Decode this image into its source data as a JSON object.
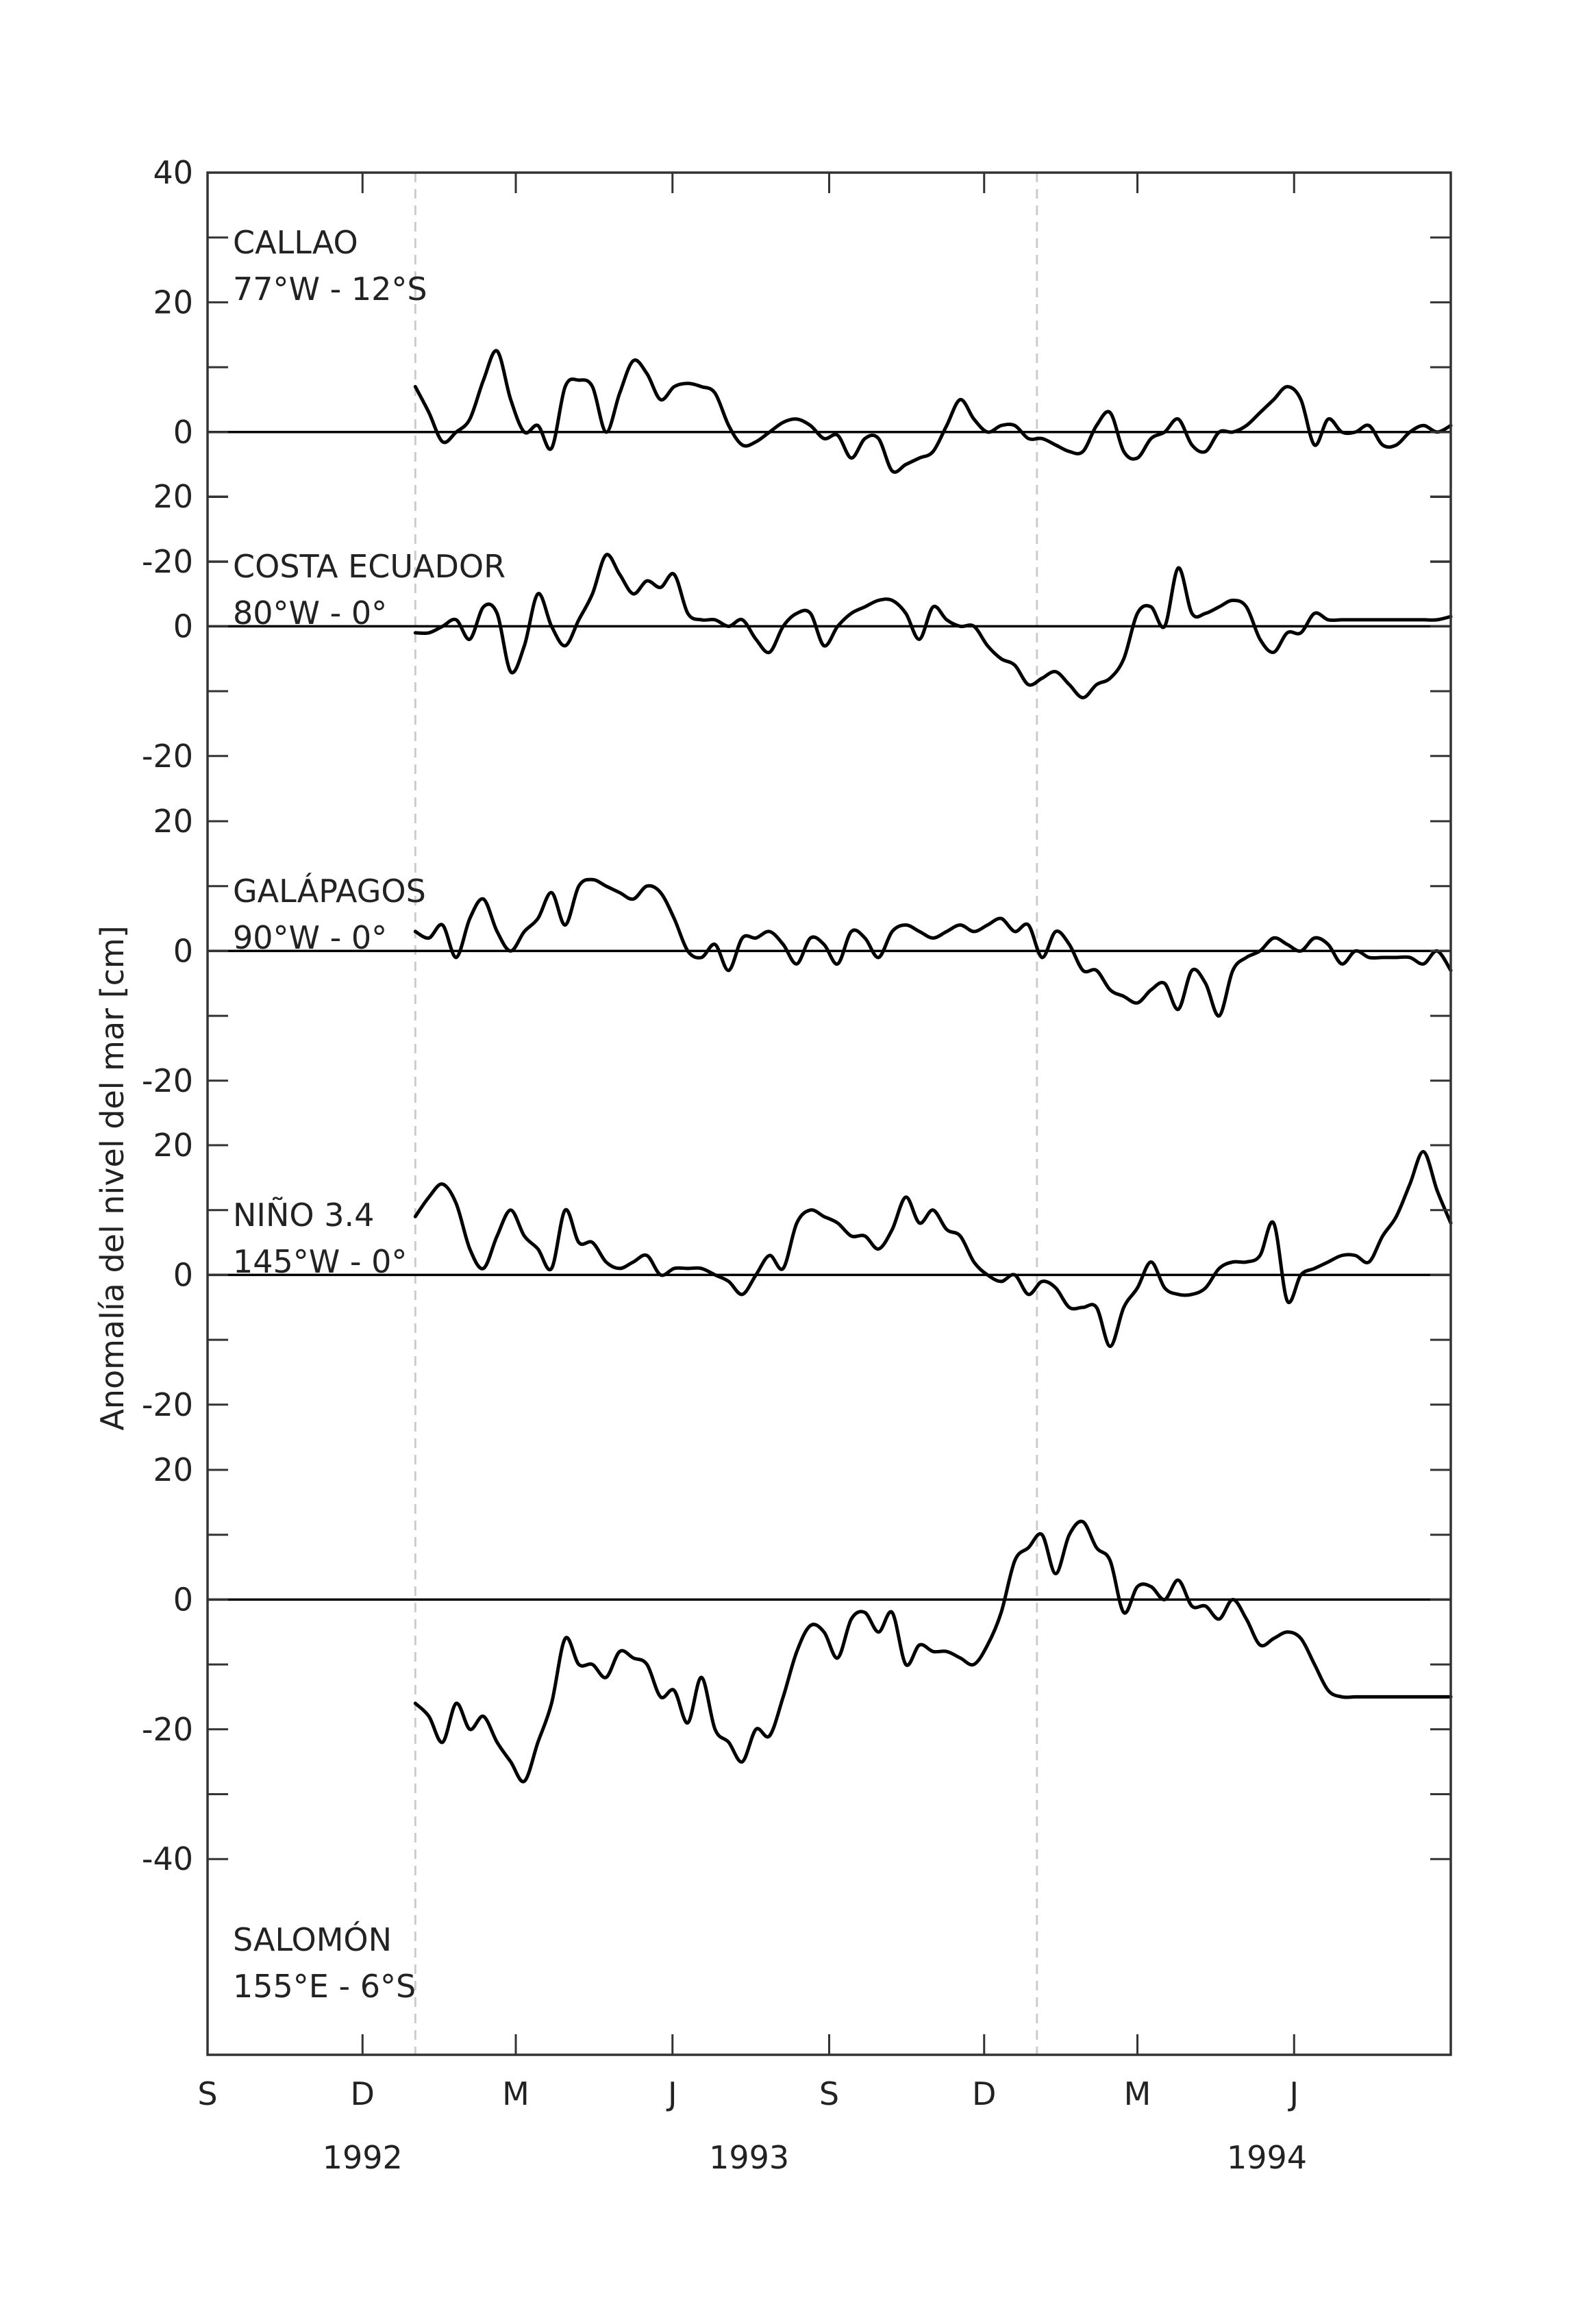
{
  "chart_data": {
    "type": "line",
    "ylabel": "Anomalía del nivel del mar [cm]",
    "x_start": "1992-09-01",
    "x_end": "1994-09-01",
    "x_ticks": [
      {
        "date": "1992-09-01",
        "label": "S"
      },
      {
        "date": "1992-12-01",
        "label": "D"
      },
      {
        "date": "1993-03-01",
        "label": "M"
      },
      {
        "date": "1993-06-01",
        "label": "J"
      },
      {
        "date": "1993-09-01",
        "label": "S"
      },
      {
        "date": "1993-12-01",
        "label": "D"
      },
      {
        "date": "1994-03-01",
        "label": "M"
      },
      {
        "date": "1994-06-01",
        "label": "J"
      }
    ],
    "year_labels": [
      {
        "label": "1992",
        "date": "1992-12-01"
      },
      {
        "label": "1993",
        "date": "1993-07-16"
      },
      {
        "label": "1994",
        "date": "1994-05-16"
      }
    ],
    "year_separators": [
      "1993-01-01",
      "1994-01-01"
    ],
    "line_color": "#000000",
    "panels": [
      {
        "station": "CALLAO",
        "coords": "77°W - 12°S",
        "ylim": [
          -20,
          40
        ],
        "yticks": [
          -20,
          0,
          20,
          40
        ],
        "x": [
          "1993-01-01",
          "1993-01-09",
          "1993-01-17",
          "1993-01-25",
          "1993-02-02",
          "1993-02-10",
          "1993-02-18",
          "1993-02-26",
          "1993-03-06",
          "1993-03-14",
          "1993-03-22",
          "1993-03-30",
          "1993-04-07",
          "1993-04-15",
          "1993-04-23",
          "1993-05-01",
          "1993-05-09",
          "1993-05-17",
          "1993-05-25",
          "1993-06-02",
          "1993-06-10",
          "1993-06-18",
          "1993-06-26",
          "1993-07-04",
          "1993-07-12",
          "1993-07-20",
          "1993-07-28",
          "1993-08-05",
          "1993-08-13",
          "1993-08-21",
          "1993-08-29",
          "1993-09-06",
          "1993-09-14",
          "1993-09-22",
          "1993-09-30",
          "1993-10-08",
          "1993-10-16",
          "1993-10-24",
          "1993-11-01",
          "1993-11-09",
          "1993-11-17",
          "1993-11-25",
          "1993-12-03",
          "1993-12-11",
          "1993-12-19",
          "1993-12-27",
          "1994-01-04",
          "1994-01-12",
          "1994-01-20",
          "1994-01-28",
          "1994-02-05",
          "1994-02-13",
          "1994-02-21",
          "1994-03-01",
          "1994-03-09",
          "1994-03-17",
          "1994-03-25",
          "1994-04-02",
          "1994-04-10",
          "1994-04-18",
          "1994-04-26",
          "1994-05-04",
          "1994-05-12",
          "1994-05-20",
          "1994-05-28",
          "1994-06-05",
          "1994-06-13",
          "1994-06-21",
          "1994-06-29",
          "1994-07-07",
          "1994-07-15",
          "1994-07-23",
          "1994-07-31",
          "1994-08-08",
          "1994-08-16",
          "1994-08-24",
          "1994-09-01"
        ],
        "values": [
          7,
          3,
          -1.5,
          0,
          2,
          8,
          12.5,
          5,
          0,
          1,
          -2.5,
          7,
          8,
          7,
          0,
          6,
          11,
          9,
          5,
          7,
          7.5,
          7,
          6,
          1,
          -2,
          -1.5,
          0,
          1.5,
          2,
          1,
          -1,
          -0.5,
          -4,
          -1,
          -1,
          -6,
          -5,
          -4,
          -3,
          1,
          5,
          2,
          0,
          1,
          1,
          -1,
          -1,
          -2,
          -3,
          -3,
          1,
          3,
          -3,
          -4,
          -1,
          0,
          2,
          -2,
          -3,
          0,
          0,
          1,
          3,
          5,
          7,
          5,
          -2,
          2,
          0,
          0,
          1,
          -2,
          -2,
          0,
          1,
          0,
          1
        ]
      },
      {
        "station": "COSTA ECUADOR",
        "coords": "80°W - 0°",
        "ylim": [
          -20,
          20
        ],
        "yticks": [
          -20,
          0,
          20
        ],
        "x": [
          "1993-01-01",
          "1993-01-09",
          "1993-01-17",
          "1993-01-25",
          "1993-02-02",
          "1993-02-10",
          "1993-02-18",
          "1993-02-26",
          "1993-03-06",
          "1993-03-14",
          "1993-03-22",
          "1993-03-30",
          "1993-04-07",
          "1993-04-15",
          "1993-04-23",
          "1993-05-01",
          "1993-05-09",
          "1993-05-17",
          "1993-05-25",
          "1993-06-02",
          "1993-06-10",
          "1993-06-18",
          "1993-06-26",
          "1993-07-04",
          "1993-07-12",
          "1993-07-20",
          "1993-07-28",
          "1993-08-05",
          "1993-08-13",
          "1993-08-21",
          "1993-08-29",
          "1993-09-06",
          "1993-09-14",
          "1993-09-22",
          "1993-09-30",
          "1993-10-08",
          "1993-10-16",
          "1993-10-24",
          "1993-11-01",
          "1993-11-09",
          "1993-11-17",
          "1993-11-25",
          "1993-12-03",
          "1993-12-11",
          "1993-12-19",
          "1993-12-27",
          "1994-01-04",
          "1994-01-12",
          "1994-01-20",
          "1994-01-28",
          "1994-02-05",
          "1994-02-13",
          "1994-02-21",
          "1994-03-01",
          "1994-03-09",
          "1994-03-17",
          "1994-03-25",
          "1994-04-02",
          "1994-04-10",
          "1994-04-18",
          "1994-04-26",
          "1994-05-04",
          "1994-05-12",
          "1994-05-20",
          "1994-05-28",
          "1994-06-05",
          "1994-06-13",
          "1994-06-21",
          "1994-06-29",
          "1994-07-07",
          "1994-07-15",
          "1994-07-23",
          "1994-07-31",
          "1994-08-08",
          "1994-08-16",
          "1994-08-24",
          "1994-09-01"
        ],
        "values": [
          -1,
          -1,
          0,
          1,
          -2,
          3,
          2,
          -7,
          -3,
          5,
          0,
          -3,
          1,
          5,
          11,
          8,
          5,
          7,
          6,
          8,
          2,
          1,
          1,
          0,
          1,
          -2,
          -4,
          0,
          2,
          2,
          -3,
          0,
          2,
          3,
          4,
          4,
          2,
          -2,
          3,
          1,
          0,
          0,
          -3,
          -5,
          -6,
          -9,
          -8,
          -7,
          -9,
          -11,
          -9,
          -8,
          -5,
          2,
          3,
          0,
          9,
          2,
          2,
          3,
          4,
          3,
          -2,
          -4,
          -1,
          -1,
          2,
          1,
          1,
          1,
          1,
          1,
          1,
          1,
          1,
          1,
          1.5
        ]
      },
      {
        "station": "GALÁPAGOS",
        "coords": "90°W - 0°",
        "ylim": [
          -20,
          20
        ],
        "yticks": [
          -20,
          0,
          20
        ],
        "x": [
          "1993-01-01",
          "1993-01-09",
          "1993-01-17",
          "1993-01-25",
          "1993-02-02",
          "1993-02-10",
          "1993-02-18",
          "1993-02-26",
          "1993-03-06",
          "1993-03-14",
          "1993-03-22",
          "1993-03-30",
          "1993-04-07",
          "1993-04-15",
          "1993-04-23",
          "1993-05-01",
          "1993-05-09",
          "1993-05-17",
          "1993-05-25",
          "1993-06-02",
          "1993-06-10",
          "1993-06-18",
          "1993-06-26",
          "1993-07-04",
          "1993-07-12",
          "1993-07-20",
          "1993-07-28",
          "1993-08-05",
          "1993-08-13",
          "1993-08-21",
          "1993-08-29",
          "1993-09-06",
          "1993-09-14",
          "1993-09-22",
          "1993-09-30",
          "1993-10-08",
          "1993-10-16",
          "1993-10-24",
          "1993-11-01",
          "1993-11-09",
          "1993-11-17",
          "1993-11-25",
          "1993-12-03",
          "1993-12-11",
          "1993-12-19",
          "1993-12-27",
          "1994-01-04",
          "1994-01-12",
          "1994-01-20",
          "1994-01-28",
          "1994-02-05",
          "1994-02-13",
          "1994-02-21",
          "1994-03-01",
          "1994-03-09",
          "1994-03-17",
          "1994-03-25",
          "1994-04-02",
          "1994-04-10",
          "1994-04-18",
          "1994-04-26",
          "1994-05-04",
          "1994-05-12",
          "1994-05-20",
          "1994-05-28",
          "1994-06-05",
          "1994-06-13",
          "1994-06-21",
          "1994-06-29",
          "1994-07-07",
          "1994-07-15",
          "1994-07-23",
          "1994-07-31",
          "1994-08-08",
          "1994-08-16",
          "1994-08-24",
          "1994-09-01"
        ],
        "values": [
          3,
          2,
          4,
          -1,
          5,
          8,
          3,
          0,
          3,
          5,
          9,
          4,
          10,
          11,
          10,
          9,
          8,
          10,
          9,
          5,
          0,
          -1,
          1,
          -3,
          2,
          2,
          3,
          1,
          -2,
          2,
          1,
          -2,
          3,
          2,
          -1,
          3,
          4,
          3,
          2,
          3,
          4,
          3,
          4,
          5,
          3,
          4,
          -1,
          3,
          1,
          -3,
          -3,
          -6,
          -7,
          -8,
          -6,
          -5,
          -9,
          -3,
          -5,
          -10,
          -3,
          -1,
          0,
          2,
          1,
          0,
          2,
          1,
          -2,
          0,
          -1,
          -1,
          -1,
          -1,
          -2,
          0,
          -3
        ]
      },
      {
        "station": "NIÑO 3.4",
        "coords": "145°W - 0°",
        "ylim": [
          -20,
          20
        ],
        "yticks": [
          -20,
          0,
          20
        ],
        "x": [
          "1993-01-01",
          "1993-01-09",
          "1993-01-17",
          "1993-01-25",
          "1993-02-02",
          "1993-02-10",
          "1993-02-18",
          "1993-02-26",
          "1993-03-06",
          "1993-03-14",
          "1993-03-22",
          "1993-03-30",
          "1993-04-07",
          "1993-04-15",
          "1993-04-23",
          "1993-05-01",
          "1993-05-09",
          "1993-05-17",
          "1993-05-25",
          "1993-06-02",
          "1993-06-10",
          "1993-06-18",
          "1993-06-26",
          "1993-07-04",
          "1993-07-12",
          "1993-07-20",
          "1993-07-28",
          "1993-08-05",
          "1993-08-13",
          "1993-08-21",
          "1993-08-29",
          "1993-09-06",
          "1993-09-14",
          "1993-09-22",
          "1993-09-30",
          "1993-10-08",
          "1993-10-16",
          "1993-10-24",
          "1993-11-01",
          "1993-11-09",
          "1993-11-17",
          "1993-11-25",
          "1993-12-03",
          "1993-12-11",
          "1993-12-19",
          "1993-12-27",
          "1994-01-04",
          "1994-01-12",
          "1994-01-20",
          "1994-01-28",
          "1994-02-05",
          "1994-02-13",
          "1994-02-21",
          "1994-03-01",
          "1994-03-09",
          "1994-03-17",
          "1994-03-25",
          "1994-04-02",
          "1994-04-10",
          "1994-04-18",
          "1994-04-26",
          "1994-05-04",
          "1994-05-12",
          "1994-05-20",
          "1994-05-28",
          "1994-06-05",
          "1994-06-13",
          "1994-06-21",
          "1994-06-29",
          "1994-07-07",
          "1994-07-15",
          "1994-07-23",
          "1994-07-31",
          "1994-08-08",
          "1994-08-16",
          "1994-08-24",
          "1994-09-01"
        ],
        "values": [
          9,
          12,
          14,
          11,
          4,
          1,
          6,
          10,
          6,
          4,
          1,
          10,
          5,
          5,
          2,
          1,
          2,
          3,
          0,
          1,
          1,
          1,
          0,
          -1,
          -3,
          0,
          3,
          1,
          8,
          10,
          9,
          8,
          6,
          6,
          4,
          7,
          12,
          8,
          10,
          7,
          6,
          2,
          0,
          -1,
          0,
          -3,
          -1,
          -2,
          -5,
          -5,
          -5,
          -11,
          -5,
          -2,
          2,
          -2,
          -3,
          -3,
          -2,
          1,
          2,
          2,
          3,
          8,
          -4,
          0,
          1,
          2,
          3,
          3,
          2,
          6,
          9,
          14,
          19,
          13,
          8
        ]
      },
      {
        "station": "SALOMÓN",
        "coords": "155°E - 6°S",
        "ylim": [
          -40,
          20
        ],
        "yticks": [
          -40,
          -20,
          0,
          20
        ],
        "x": [
          "1993-01-01",
          "1993-01-09",
          "1993-01-17",
          "1993-01-25",
          "1993-02-02",
          "1993-02-10",
          "1993-02-18",
          "1993-02-26",
          "1993-03-06",
          "1993-03-14",
          "1993-03-22",
          "1993-03-30",
          "1993-04-07",
          "1993-04-15",
          "1993-04-23",
          "1993-05-01",
          "1993-05-09",
          "1993-05-17",
          "1993-05-25",
          "1993-06-02",
          "1993-06-10",
          "1993-06-18",
          "1993-06-26",
          "1993-07-04",
          "1993-07-12",
          "1993-07-20",
          "1993-07-28",
          "1993-08-05",
          "1993-08-13",
          "1993-08-21",
          "1993-08-29",
          "1993-09-06",
          "1993-09-14",
          "1993-09-22",
          "1993-09-30",
          "1993-10-08",
          "1993-10-16",
          "1993-10-24",
          "1993-11-01",
          "1993-11-09",
          "1993-11-17",
          "1993-11-25",
          "1993-12-03",
          "1993-12-11",
          "1993-12-19",
          "1993-12-27",
          "1994-01-04",
          "1994-01-12",
          "1994-01-20",
          "1994-01-28",
          "1994-02-05",
          "1994-02-13",
          "1994-02-21",
          "1994-03-01",
          "1994-03-09",
          "1994-03-17",
          "1994-03-25",
          "1994-04-02",
          "1994-04-10",
          "1994-04-18",
          "1994-04-26",
          "1994-05-04",
          "1994-05-12",
          "1994-05-20",
          "1994-05-28",
          "1994-06-05",
          "1994-06-13",
          "1994-06-21",
          "1994-06-29",
          "1994-07-07",
          "1994-07-15",
          "1994-07-23",
          "1994-07-31",
          "1994-08-08",
          "1994-08-16",
          "1994-08-24",
          "1994-09-01"
        ],
        "values": [
          -16,
          -18,
          -22,
          -16,
          -20,
          -18,
          -22,
          -25,
          -28,
          -22,
          -16,
          -6,
          -10,
          -10,
          -12,
          -8,
          -9,
          -10,
          -15,
          -14,
          -19,
          -12,
          -20,
          -22,
          -25,
          -20,
          -21,
          -15,
          -8,
          -4,
          -5,
          -9,
          -3,
          -2,
          -5,
          -2,
          -10,
          -7,
          -8,
          -8,
          -9,
          -10,
          -7,
          -2,
          6,
          8,
          10,
          4,
          10,
          12,
          8,
          6,
          -2,
          2,
          2,
          0,
          3,
          -1,
          -1,
          -3,
          0,
          -3,
          -7,
          -6,
          -5,
          -6,
          -10,
          -14,
          -15,
          -15,
          -15,
          -15,
          -15,
          -15,
          -15,
          -15,
          -15
        ]
      }
    ]
  }
}
